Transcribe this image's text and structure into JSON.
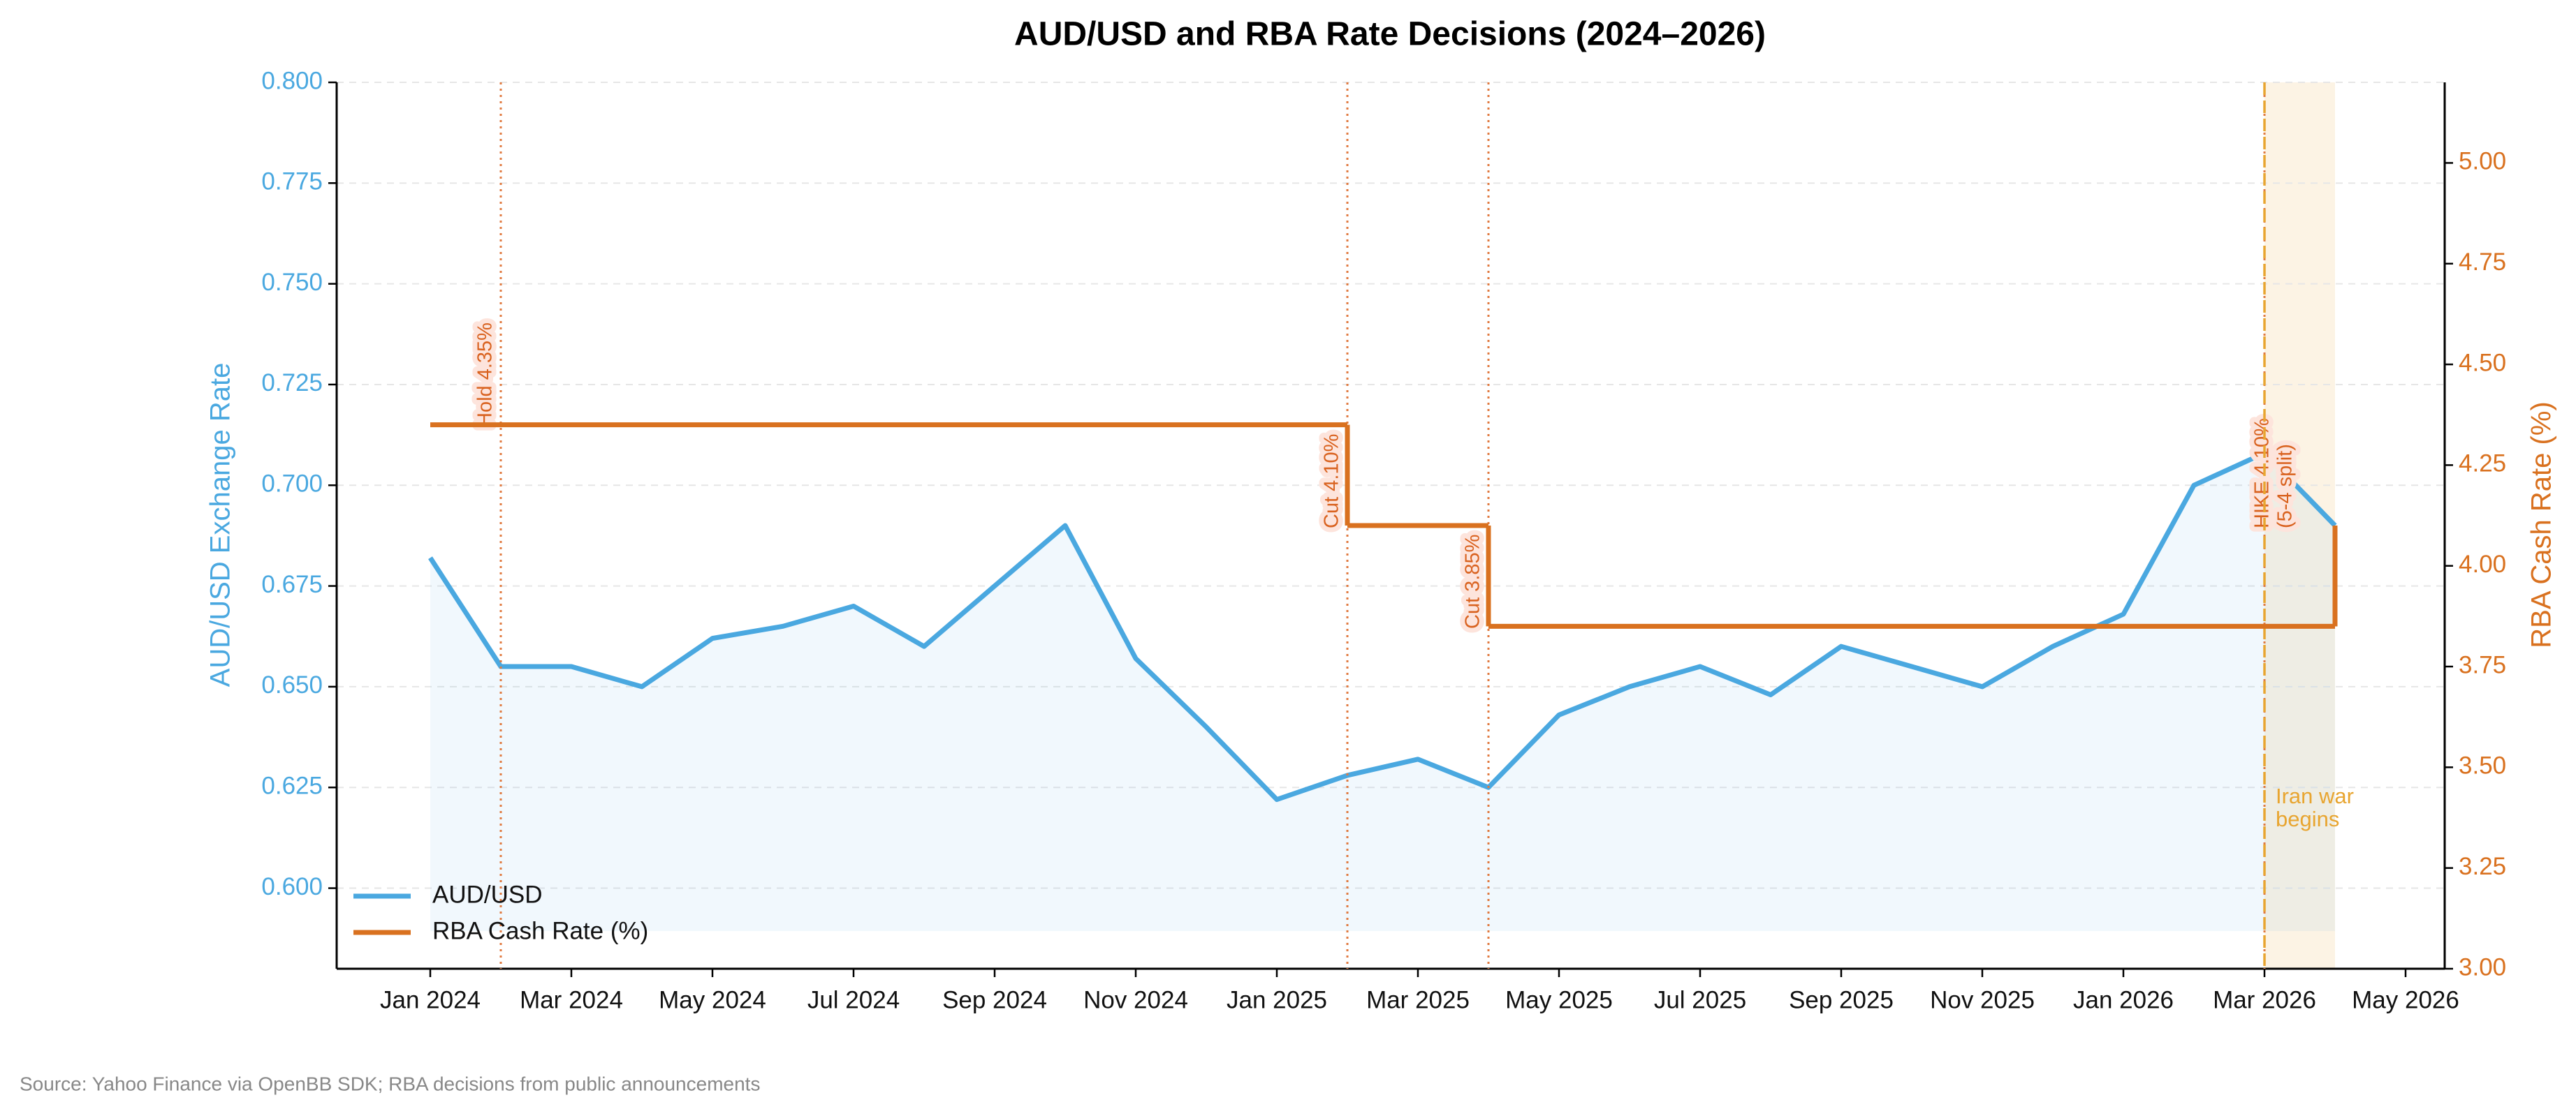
{
  "chart_data": {
    "type": "line",
    "title": "AUD/USD and RBA Rate Decisions (2024–2026)",
    "y_label": "AUD/USD Exchange Rate",
    "y2_label": "RBA Cash Rate (%)",
    "source": "Source: Yahoo Finance via OpenBB SDK; RBA decisions from public announcements",
    "legend": "lower left",
    "grid": true,
    "series": [
      {
        "name": "AUD/USD",
        "color": "#4aa8e0",
        "x": [
          "2024-01",
          "2024-02",
          "2024-03",
          "2024-04",
          "2024-05",
          "2024-06",
          "2024-07",
          "2024-08",
          "2024-09",
          "2024-10",
          "2024-11",
          "2024-12",
          "2025-01",
          "2025-02",
          "2025-03",
          "2025-04",
          "2025-05",
          "2025-06",
          "2025-07",
          "2025-08",
          "2025-09",
          "2025-10",
          "2025-11",
          "2025-12",
          "2026-01",
          "2026-02",
          "2026-03",
          "2026-04"
        ],
        "values": [
          0.682,
          0.655,
          0.655,
          0.65,
          0.662,
          0.665,
          0.67,
          0.66,
          0.675,
          0.69,
          0.657,
          0.64,
          0.622,
          0.628,
          0.632,
          0.625,
          0.643,
          0.65,
          0.655,
          0.648,
          0.66,
          0.655,
          0.65,
          0.66,
          0.668,
          0.7,
          0.708,
          0.69
        ]
      },
      {
        "name": "RBA Cash Rate (%)",
        "color": "#d9711f",
        "axis": "y2",
        "step": true,
        "x": [
          "2024-01",
          "2025-02",
          "2025-04",
          "2026-04"
        ],
        "values": [
          4.35,
          4.1,
          3.85,
          4.1
        ]
      }
    ],
    "xticks": [
      {
        "value": "2024-01",
        "label": "Jan 2024"
      },
      {
        "value": "2024-03",
        "label": "Mar 2024"
      },
      {
        "value": "2024-05",
        "label": "May 2024"
      },
      {
        "value": "2024-07",
        "label": "Jul 2024"
      },
      {
        "value": "2024-09",
        "label": "Sep 2024"
      },
      {
        "value": "2024-11",
        "label": "Nov 2024"
      },
      {
        "value": "2025-01",
        "label": "Jan 2025"
      },
      {
        "value": "2025-03",
        "label": "Mar 2025"
      },
      {
        "value": "2025-05",
        "label": "May 2025"
      },
      {
        "value": "2025-07",
        "label": "Jul 2025"
      },
      {
        "value": "2025-09",
        "label": "Sep 2025"
      },
      {
        "value": "2025-11",
        "label": "Nov 2025"
      },
      {
        "value": "2026-01",
        "label": "Jan 2026"
      },
      {
        "value": "2026-03",
        "label": "Mar 2026"
      },
      {
        "value": "2026-05",
        "label": "May 2026"
      }
    ],
    "ylim": [
      0.58,
      0.8
    ],
    "yticks": [
      {
        "value": 0.6,
        "label": "0.600"
      },
      {
        "value": 0.625,
        "label": "0.625"
      },
      {
        "value": 0.65,
        "label": "0.650"
      },
      {
        "value": 0.675,
        "label": "0.675"
      },
      {
        "value": 0.7,
        "label": "0.700"
      },
      {
        "value": 0.725,
        "label": "0.725"
      },
      {
        "value": 0.75,
        "label": "0.750"
      },
      {
        "value": 0.775,
        "label": "0.775"
      },
      {
        "value": 0.8,
        "label": "0.800"
      }
    ],
    "y2lim": [
      3.0,
      5.2
    ],
    "y2ticks": [
      {
        "value": 3,
        "label": "3.00"
      },
      3.25,
      {
        "value": 3.5,
        "label": "3.50"
      },
      3.75,
      {
        "value": 4,
        "label": "4.00"
      },
      4.25,
      {
        "value": 4.5,
        "label": "4.50"
      },
      4.75,
      {
        "value": 5,
        "label": "5.00"
      }
    ],
    "annotations": [
      {
        "x": "2024-02",
        "label": [
          "Hold 4.35%"
        ],
        "color": "#e07a40",
        "style": "dotted"
      },
      {
        "x": "2025-02",
        "label": [
          "Cut 4.10%"
        ],
        "color": "#e07a40",
        "style": "dotted"
      },
      {
        "x": "2025-04",
        "label": [
          "Cut 3.85%"
        ],
        "color": "#e07a40",
        "style": "dotted"
      },
      {
        "x": "2026-03",
        "label": [
          "HIKE 4.10%",
          "(5-4 split)"
        ],
        "color": "#e07a40",
        "style": "dotted"
      },
      {
        "x": "2026-03",
        "label": [
          "Iran war",
          "begins"
        ],
        "color": "#e8a530",
        "style": "dashed",
        "span": [
          "2026-03",
          "2026-04"
        ]
      }
    ]
  }
}
